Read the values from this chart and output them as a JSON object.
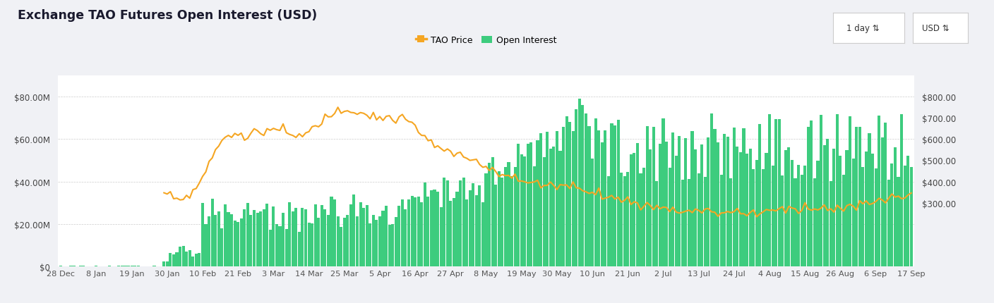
{
  "title": "Exchange TAO Futures Open Interest (USD)",
  "fig_bg": "#f0f1f5",
  "plot_bg": "#ffffff",
  "bar_color": "#3dcc7e",
  "line_color": "#f5a623",
  "left_ylim": [
    0,
    90000000
  ],
  "right_ylim": [
    0,
    900
  ],
  "left_yticks": [
    0,
    20000000,
    40000000,
    60000000,
    80000000
  ],
  "right_yticks": [
    300,
    400,
    500,
    600,
    700,
    800
  ],
  "xtick_labels": [
    "28 Dec",
    "8 Jan",
    "19 Jan",
    "30 Jan",
    "10 Feb",
    "21 Feb",
    "3 Mar",
    "14 Mar",
    "25 Mar",
    "5 Apr",
    "16 Apr",
    "27 Apr",
    "8 May",
    "19 May",
    "30 May",
    "10 Jun",
    "21 Jun",
    "2 Jul",
    "13 Jul",
    "24 Jul",
    "4 Aug",
    "15 Aug",
    "26 Aug",
    "6 Sep",
    "17 Sep"
  ],
  "n_bars": 265,
  "legend_tao": "TAO Price",
  "legend_oi": "Open Interest",
  "button1": "1 day",
  "button2": "USD"
}
